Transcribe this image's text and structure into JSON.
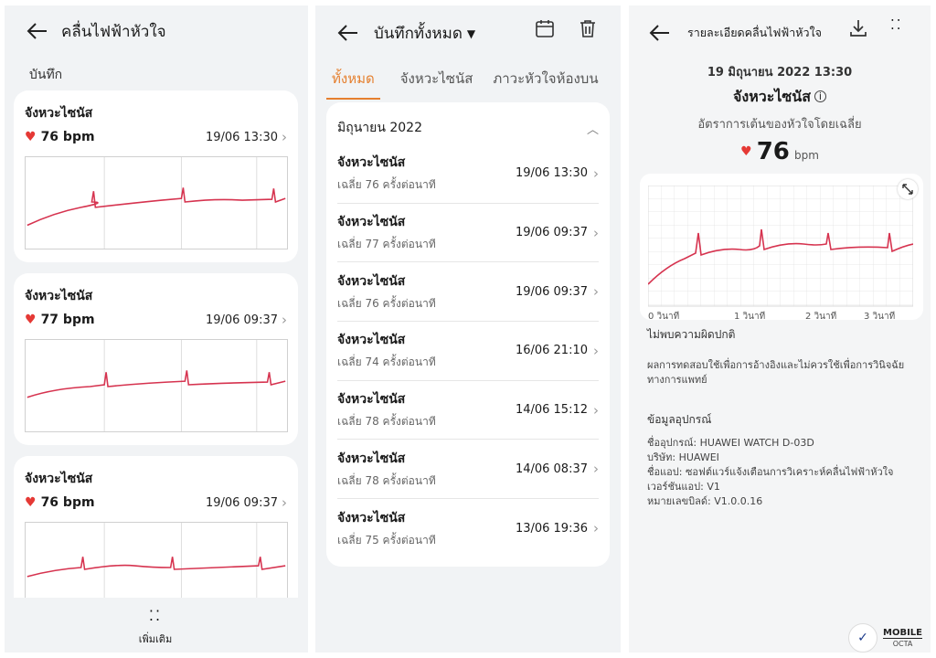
{
  "panel1": {
    "title": "คลื่นไฟฟ้าหัวใจ",
    "section": "บันทึก",
    "records": [
      {
        "type": "จังหวะไซนัส",
        "bpm": "76 bpm",
        "time": "19/06 13:30"
      },
      {
        "type": "จังหวะไซนัส",
        "bpm": "77 bpm",
        "time": "19/06 09:37"
      },
      {
        "type": "จังหวะไซนัส",
        "bpm": "76 bpm",
        "time": "19/06 09:37"
      }
    ],
    "more_label": "เพิ่มเติม"
  },
  "panel2": {
    "title": "บันทึกทั้งหมด",
    "tabs": [
      "ทั้งหมด",
      "จังหวะไซนัส",
      "ภาวะหัวใจห้องบน"
    ],
    "group_label": "มิถุนายน 2022",
    "items": [
      {
        "type": "จังหวะไซนัส",
        "avg": "เฉลี่ย 76 ครั้งต่อนาที",
        "time": "19/06 13:30"
      },
      {
        "type": "จังหวะไซนัส",
        "avg": "เฉลี่ย 77 ครั้งต่อนาที",
        "time": "19/06 09:37"
      },
      {
        "type": "จังหวะไซนัส",
        "avg": "เฉลี่ย 76 ครั้งต่อนาที",
        "time": "19/06 09:37"
      },
      {
        "type": "จังหวะไซนัส",
        "avg": "เฉลี่ย 74 ครั้งต่อนาที",
        "time": "16/06 21:10"
      },
      {
        "type": "จังหวะไซนัส",
        "avg": "เฉลี่ย 78 ครั้งต่อนาที",
        "time": "14/06 15:12"
      },
      {
        "type": "จังหวะไซนัส",
        "avg": "เฉลี่ย 78 ครั้งต่อนาที",
        "time": "14/06 08:37"
      },
      {
        "type": "จังหวะไซนัส",
        "avg": "เฉลี่ย 75 ครั้งต่อนาที",
        "time": "13/06 19:36"
      }
    ]
  },
  "panel3": {
    "title": "รายละเอียดคลื่นไฟฟ้าหัวใจ",
    "date": "19 มิถุนายน 2022 13:30",
    "rhythm": "จังหวะไซนัส",
    "avg_label": "อัตราการเต้นของหัวใจโดยเฉลี่ย",
    "avg_value": "76",
    "avg_unit": "bpm",
    "axis_labels": [
      "0 วินาที",
      "1 วินาที",
      "2 วินาที",
      "3 วินาที"
    ],
    "status": "ไม่พบความผิดปกติ",
    "disclaimer": "ผลการทดสอบใช้เพื่อการอ้างอิงและไม่ควรใช้เพื่อการวินิจฉัยทางการแพทย์",
    "device_header": "ข้อมูลอุปกรณ์",
    "device_lines": [
      "ชื่ออุปกรณ์: HUAWEI WATCH D-03D",
      "บริษัท: HUAWEI",
      "ชื่อแอป: ซอฟต์แวร์แจ้งเตือนการวิเคราะห์คลื่นไฟฟ้าหัวใจ",
      "เวอร์ชันแอป: V1",
      "หมายเลขบิลด์: V1.0.0.16"
    ],
    "brand_line1": "MOBILE",
    "brand_line2": "OCTA"
  },
  "colors": {
    "accent": "#e57f2e",
    "ecg": "#d6334f",
    "heart": "#e53935"
  }
}
